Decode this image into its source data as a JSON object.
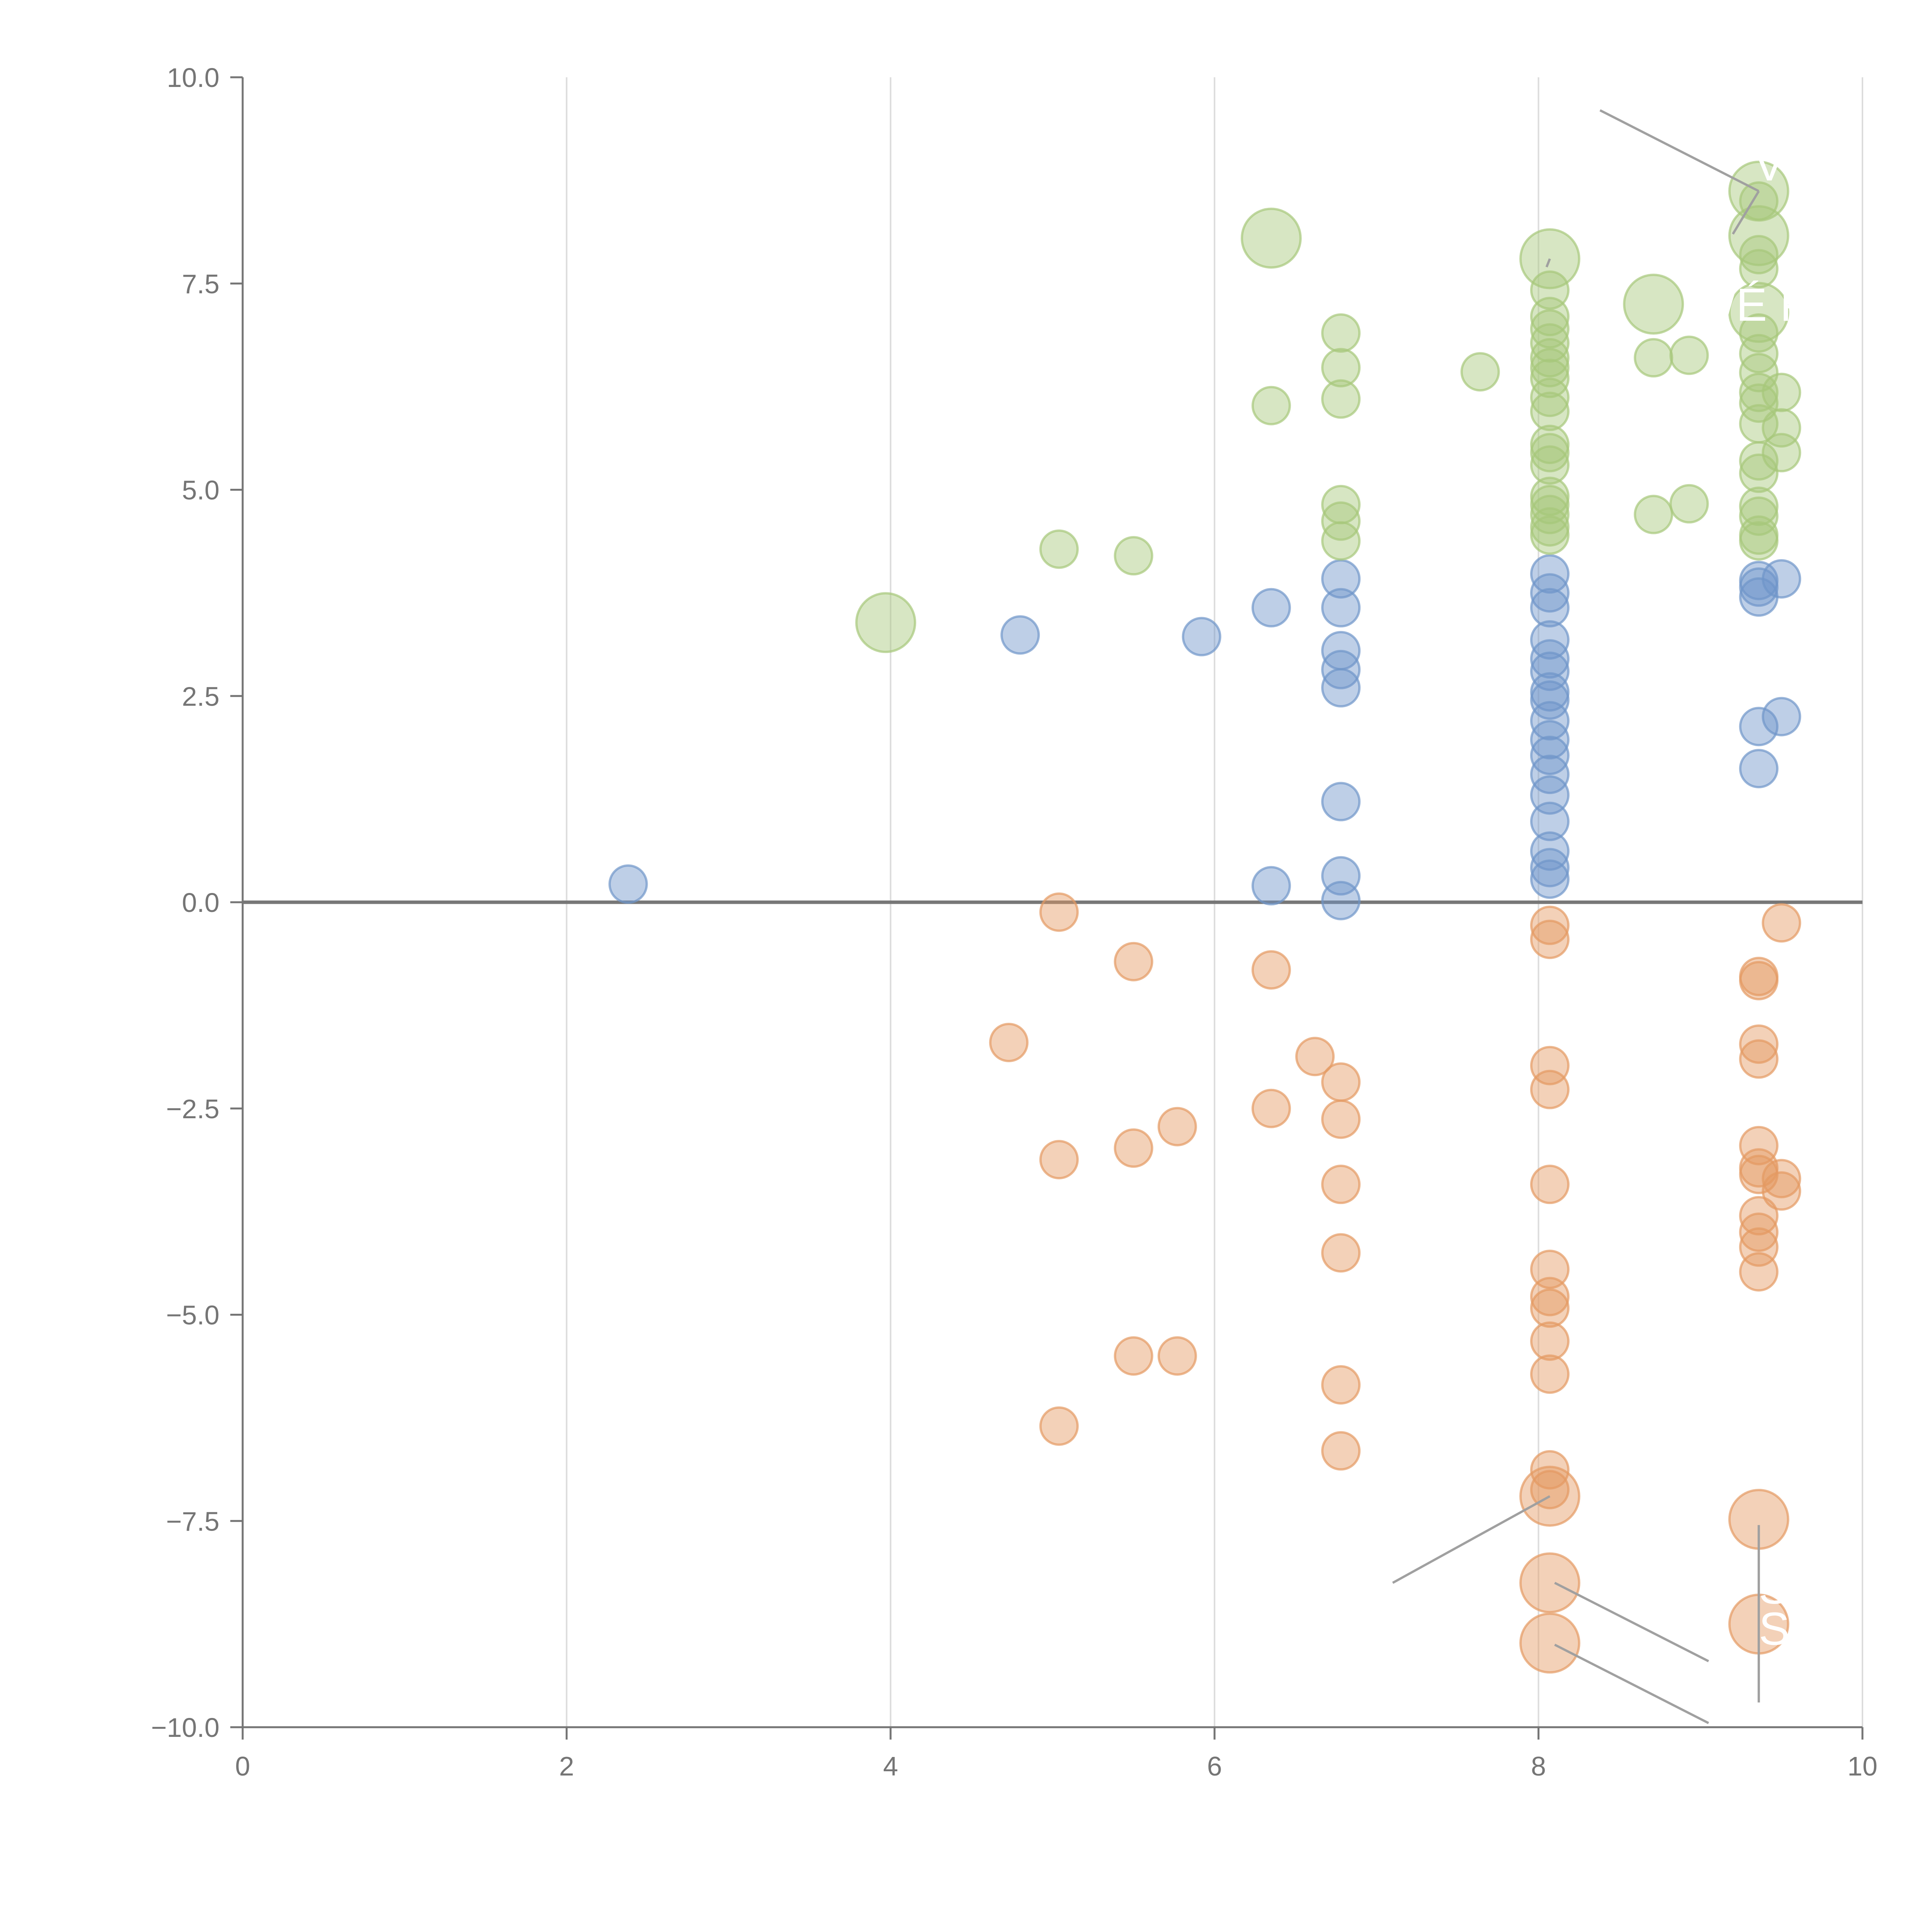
{
  "chart_data": {
    "type": "scatter",
    "title": "",
    "xlabel": "",
    "ylabel": "",
    "xlim": [
      0,
      10
    ],
    "ylim": [
      -10,
      10
    ],
    "x_ticks": [
      0,
      2,
      4,
      6,
      8,
      10
    ],
    "x_tick_labels": [
      "0",
      "2",
      "4",
      "6",
      "8",
      "10"
    ],
    "y_ticks": [
      10,
      7.5,
      5,
      2.5,
      0,
      -2.5,
      -5,
      -7.5,
      -10
    ],
    "y_tick_labels": [
      "10.0",
      "7.5",
      "5.0",
      "2.5",
      "0.0",
      "−2.5",
      "−5.0",
      "−7.5",
      "−10.0"
    ],
    "grid": "vertical",
    "zero_line": true,
    "legend": "none",
    "colors": {
      "blue": "#6f95c9",
      "orange": "#e49a62",
      "green": "#a7c77a",
      "axis": "#757575",
      "grid": "#dcdcdc",
      "leader": "#a0a0a0"
    },
    "series": [
      {
        "name": "blue",
        "color": "#6f95c9",
        "points": [
          [
            2.38,
            0.22,
            1
          ],
          [
            4.8,
            3.24,
            1
          ],
          [
            5.92,
            3.22,
            1
          ],
          [
            6.35,
            3.57,
            1
          ],
          [
            6.35,
            0.2,
            1
          ],
          [
            6.78,
            3.92,
            1
          ],
          [
            6.78,
            3.57,
            1
          ],
          [
            6.78,
            3.05,
            1
          ],
          [
            6.78,
            2.82,
            1
          ],
          [
            6.78,
            2.6,
            1
          ],
          [
            6.78,
            1.22,
            1
          ],
          [
            6.78,
            0.32,
            1
          ],
          [
            6.78,
            0.02,
            1
          ],
          [
            8.07,
            3.98,
            1
          ],
          [
            8.07,
            3.75,
            1
          ],
          [
            8.07,
            3.57,
            1
          ],
          [
            8.07,
            3.18,
            1
          ],
          [
            8.07,
            2.95,
            1
          ],
          [
            8.07,
            2.8,
            1
          ],
          [
            8.07,
            2.55,
            1
          ],
          [
            8.07,
            2.45,
            1
          ],
          [
            8.07,
            2.2,
            1
          ],
          [
            8.07,
            1.97,
            1
          ],
          [
            8.07,
            1.78,
            1
          ],
          [
            8.07,
            1.55,
            1
          ],
          [
            8.07,
            1.3,
            1
          ],
          [
            8.07,
            0.98,
            1
          ],
          [
            8.07,
            0.62,
            1
          ],
          [
            8.07,
            0.42,
            1
          ],
          [
            8.07,
            0.28,
            1
          ],
          [
            9.36,
            3.9,
            1
          ],
          [
            9.36,
            3.82,
            1
          ],
          [
            9.36,
            3.7,
            1
          ],
          [
            9.5,
            3.92,
            1
          ],
          [
            9.36,
            2.13,
            1
          ],
          [
            9.5,
            2.25,
            1
          ],
          [
            9.36,
            1.62,
            1
          ]
        ]
      },
      {
        "name": "orange",
        "color": "#e49a62",
        "points": [
          [
            5.04,
            -0.12,
            1
          ],
          [
            5.5,
            -0.72,
            1
          ],
          [
            6.35,
            -0.82,
            1
          ],
          [
            4.73,
            -1.7,
            1
          ],
          [
            6.62,
            -1.87,
            1
          ],
          [
            6.78,
            -2.18,
            1
          ],
          [
            6.35,
            -2.5,
            1
          ],
          [
            6.78,
            -2.63,
            1
          ],
          [
            5.77,
            -2.72,
            1
          ],
          [
            5.5,
            -2.98,
            1
          ],
          [
            5.04,
            -3.12,
            1
          ],
          [
            6.78,
            -3.42,
            1
          ],
          [
            6.78,
            -4.25,
            1
          ],
          [
            5.5,
            -5.5,
            1
          ],
          [
            5.77,
            -5.5,
            1
          ],
          [
            6.78,
            -5.85,
            1
          ],
          [
            5.04,
            -6.35,
            1
          ],
          [
            6.78,
            -6.65,
            1
          ],
          [
            8.07,
            -0.28,
            1
          ],
          [
            8.07,
            -0.45,
            1
          ],
          [
            8.07,
            -1.98,
            1
          ],
          [
            8.07,
            -2.27,
            1
          ],
          [
            8.07,
            -3.42,
            1
          ],
          [
            8.07,
            -4.45,
            1
          ],
          [
            8.07,
            -4.78,
            1
          ],
          [
            8.07,
            -4.92,
            1
          ],
          [
            8.07,
            -5.32,
            1
          ],
          [
            8.07,
            -5.72,
            1
          ],
          [
            8.07,
            -6.88,
            1
          ],
          [
            8.07,
            -7.12,
            1
          ],
          [
            8.07,
            -7.2,
            2.5
          ],
          [
            8.07,
            -8.25,
            2.5
          ],
          [
            8.07,
            -8.98,
            2.5
          ],
          [
            9.5,
            -0.25,
            1
          ],
          [
            9.36,
            -0.9,
            1
          ],
          [
            9.36,
            -0.95,
            1
          ],
          [
            9.36,
            -1.72,
            1
          ],
          [
            9.36,
            -1.9,
            1
          ],
          [
            9.36,
            -2.95,
            1
          ],
          [
            9.36,
            -3.22,
            1
          ],
          [
            9.36,
            -3.3,
            1
          ],
          [
            9.5,
            -3.35,
            1
          ],
          [
            9.5,
            -3.5,
            1
          ],
          [
            9.36,
            -3.8,
            1
          ],
          [
            9.36,
            -4.0,
            1
          ],
          [
            9.36,
            -4.18,
            1
          ],
          [
            9.36,
            -4.48,
            1
          ],
          [
            9.36,
            -7.48,
            2.5
          ],
          [
            9.36,
            -8.75,
            2.5
          ]
        ]
      },
      {
        "name": "green",
        "color": "#a7c77a",
        "points": [
          [
            3.97,
            3.39,
            2.5
          ],
          [
            5.04,
            4.28,
            1
          ],
          [
            5.5,
            4.2,
            1
          ],
          [
            6.35,
            6.02,
            1
          ],
          [
            6.35,
            8.05,
            2.5
          ],
          [
            6.78,
            6.9,
            1
          ],
          [
            6.78,
            6.48,
            1
          ],
          [
            6.78,
            6.1,
            1
          ],
          [
            6.78,
            4.82,
            1
          ],
          [
            6.78,
            4.62,
            1
          ],
          [
            6.78,
            4.38,
            1
          ],
          [
            7.64,
            6.43,
            1
          ],
          [
            8.07,
            7.8,
            2.5
          ],
          [
            8.07,
            7.42,
            1
          ],
          [
            8.07,
            7.1,
            1
          ],
          [
            8.07,
            6.95,
            1
          ],
          [
            8.07,
            6.78,
            1
          ],
          [
            8.07,
            6.6,
            1
          ],
          [
            8.07,
            6.48,
            1
          ],
          [
            8.07,
            6.35,
            1
          ],
          [
            8.07,
            6.12,
            1
          ],
          [
            8.07,
            5.95,
            1
          ],
          [
            8.07,
            5.55,
            1
          ],
          [
            8.07,
            5.45,
            1
          ],
          [
            8.07,
            5.3,
            1
          ],
          [
            8.07,
            4.92,
            1
          ],
          [
            8.07,
            4.82,
            1
          ],
          [
            8.07,
            4.7,
            1
          ],
          [
            8.07,
            4.55,
            1
          ],
          [
            8.07,
            4.45,
            1
          ],
          [
            8.71,
            7.25,
            2.5
          ],
          [
            8.71,
            6.6,
            1
          ],
          [
            8.93,
            6.63,
            1
          ],
          [
            8.71,
            4.7,
            1
          ],
          [
            8.93,
            4.83,
            1
          ],
          [
            9.36,
            8.62,
            2.5
          ],
          [
            9.36,
            8.5,
            1
          ],
          [
            9.36,
            8.08,
            2.5
          ],
          [
            9.36,
            7.85,
            1
          ],
          [
            9.36,
            7.68,
            1
          ],
          [
            9.36,
            7.15,
            2.5
          ],
          [
            9.36,
            6.9,
            1
          ],
          [
            9.36,
            6.65,
            1
          ],
          [
            9.36,
            6.42,
            1
          ],
          [
            9.36,
            6.18,
            1
          ],
          [
            9.36,
            6.05,
            1
          ],
          [
            9.5,
            6.18,
            1
          ],
          [
            9.36,
            5.8,
            1
          ],
          [
            9.5,
            5.75,
            1
          ],
          [
            9.36,
            5.35,
            1
          ],
          [
            9.5,
            5.45,
            1
          ],
          [
            9.36,
            5.2,
            1
          ],
          [
            9.36,
            4.8,
            1
          ],
          [
            9.36,
            4.68,
            1
          ],
          [
            9.36,
            4.45,
            1
          ],
          [
            9.36,
            4.38,
            1
          ]
        ]
      }
    ],
    "annotations": [
      {
        "text": "V",
        "x": 9.33,
        "y": 8.75
      },
      {
        "text": "WÉ P",
        "x": 8.95,
        "y": 7.05
      },
      {
        "text": "S",
        "x": 9.36,
        "y": -8.5
      },
      {
        "text": "SC",
        "x": 9.36,
        "y": -9.0
      }
    ]
  }
}
